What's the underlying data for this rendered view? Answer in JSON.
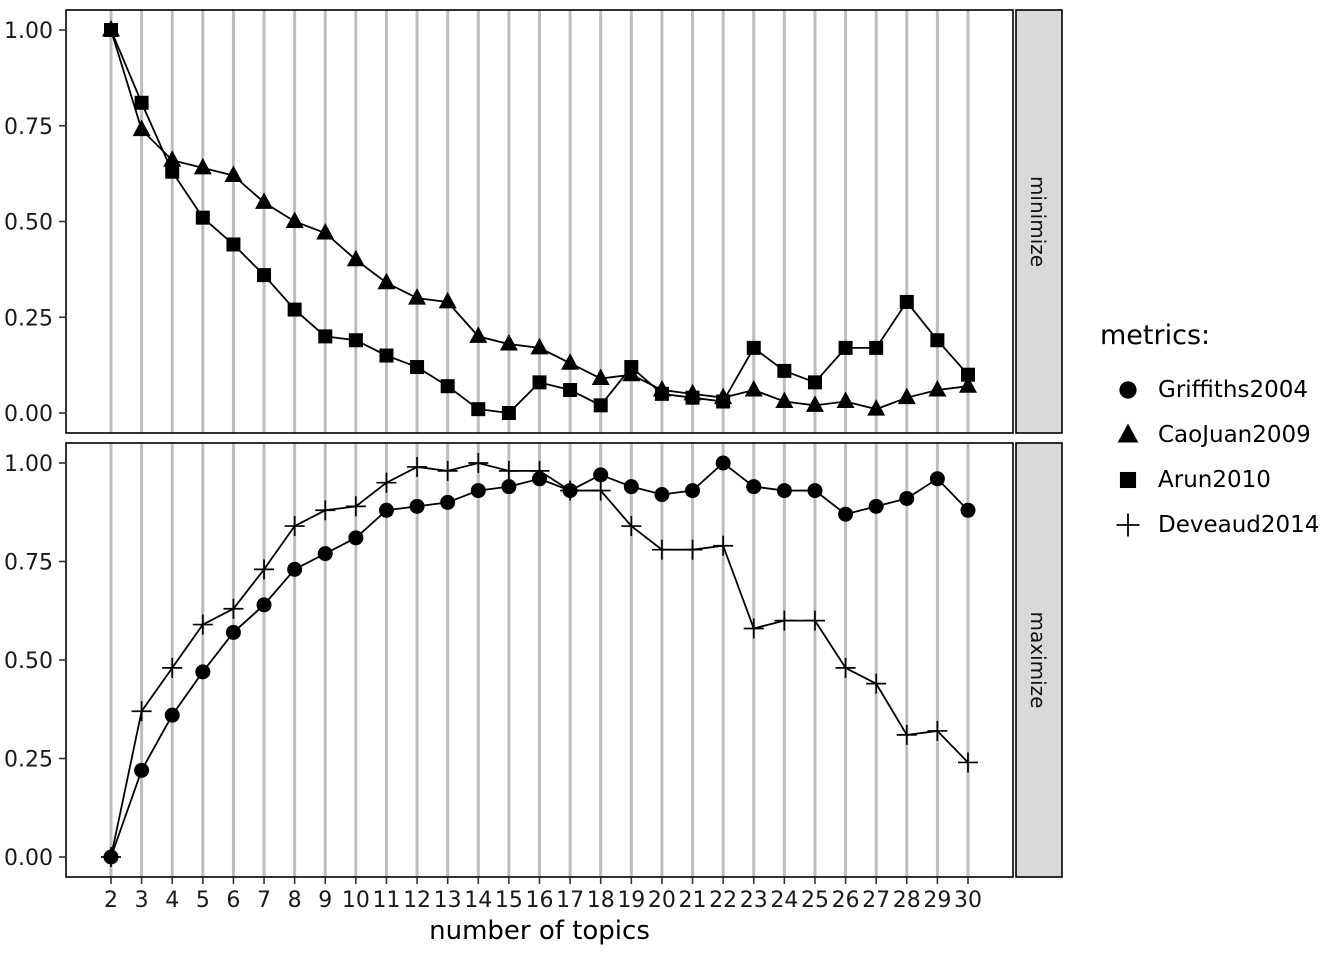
{
  "chart_data": {
    "type": "line",
    "title": "",
    "xlabel": "number of topics",
    "ylabel": "",
    "ylim": [
      0,
      1
    ],
    "grid": "vertical-major-only",
    "x": [
      2,
      3,
      4,
      5,
      6,
      7,
      8,
      9,
      10,
      11,
      12,
      13,
      14,
      15,
      16,
      17,
      18,
      19,
      20,
      21,
      22,
      23,
      24,
      25,
      26,
      27,
      28,
      29,
      30
    ],
    "y_ticks": [
      0,
      0.25,
      0.5,
      0.75,
      1
    ],
    "facets": [
      {
        "label": "minimize",
        "series": [
          {
            "name": "CaoJuan2009",
            "marker": "triangle",
            "values": [
              1.0,
              0.74,
              0.66,
              0.64,
              0.62,
              0.55,
              0.5,
              0.47,
              0.4,
              0.34,
              0.3,
              0.29,
              0.2,
              0.18,
              0.17,
              0.13,
              0.09,
              0.1,
              0.06,
              0.05,
              0.04,
              0.06,
              0.03,
              0.02,
              0.03,
              0.01,
              0.04,
              0.06,
              0.07
            ]
          },
          {
            "name": "Arun2010",
            "marker": "square",
            "values": [
              1.0,
              0.81,
              0.63,
              0.51,
              0.44,
              0.36,
              0.27,
              0.2,
              0.19,
              0.15,
              0.12,
              0.07,
              0.01,
              0.0,
              0.08,
              0.06,
              0.02,
              0.12,
              0.05,
              0.04,
              0.03,
              0.17,
              0.11,
              0.08,
              0.17,
              0.17,
              0.29,
              0.19,
              0.1
            ]
          }
        ]
      },
      {
        "label": "maximize",
        "series": [
          {
            "name": "Griffiths2004",
            "marker": "circle",
            "values": [
              0.0,
              0.22,
              0.36,
              0.47,
              0.57,
              0.64,
              0.73,
              0.77,
              0.81,
              0.88,
              0.89,
              0.9,
              0.93,
              0.94,
              0.96,
              0.93,
              0.97,
              0.94,
              0.92,
              0.93,
              1.0,
              0.94,
              0.93,
              0.93,
              0.87,
              0.89,
              0.91,
              0.96,
              0.88
            ]
          },
          {
            "name": "Deveaud2014",
            "marker": "plus",
            "values": [
              0.0,
              0.37,
              0.48,
              0.59,
              0.63,
              0.73,
              0.84,
              0.88,
              0.89,
              0.95,
              0.99,
              0.98,
              1.0,
              0.98,
              0.98,
              0.93,
              0.93,
              0.84,
              0.78,
              0.78,
              0.79,
              0.58,
              0.6,
              0.6,
              0.48,
              0.44,
              0.31,
              0.32,
              0.24
            ]
          }
        ]
      }
    ],
    "legend": {
      "title": "metrics:",
      "position": "right",
      "items": [
        {
          "label": "Griffiths2004",
          "marker": "circle"
        },
        {
          "label": "CaoJuan2009",
          "marker": "triangle"
        },
        {
          "label": "Arun2010",
          "marker": "square"
        },
        {
          "label": "Deveaud2014",
          "marker": "plus"
        }
      ]
    },
    "colors": {
      "series": "#000000",
      "grid": "#bdbdbd",
      "strip_bg": "#d9d9d9",
      "strip_border": "#000000",
      "panel_border": "#000000",
      "axis_text": "#1a1a1a",
      "background": "#ffffff"
    }
  }
}
